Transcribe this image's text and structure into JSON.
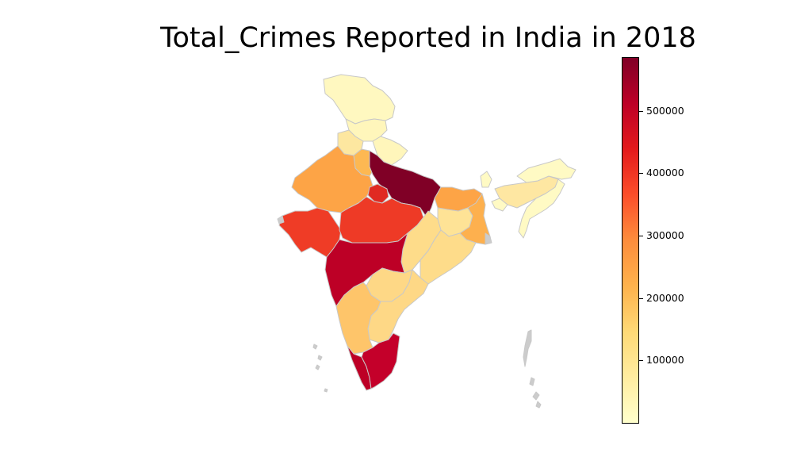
{
  "title": "Total_Crimes Reported in India in 2018",
  "colorbar": {
    "colormap": "YlOrRd",
    "min": 0,
    "max": 585000,
    "stops": [
      "#ffffcc",
      "#ffeda0",
      "#fed976",
      "#feb24c",
      "#fd8d3c",
      "#fc4e2a",
      "#e31a1c",
      "#bd0026",
      "#800026"
    ],
    "ticks": [
      {
        "value": 100000,
        "label": "100000"
      },
      {
        "value": 200000,
        "label": "200000"
      },
      {
        "value": 300000,
        "label": "300000"
      },
      {
        "value": 400000,
        "label": "400000"
      },
      {
        "value": 500000,
        "label": "500000"
      }
    ]
  },
  "map_data": {
    "regions": [
      {
        "name": "Jammu and Kashmir",
        "color": "#fff8c0"
      },
      {
        "name": "Himachal Pradesh",
        "color": "#fff6bb"
      },
      {
        "name": "Punjab",
        "color": "#fde7a0"
      },
      {
        "name": "Uttarakhand",
        "color": "#fff6bb"
      },
      {
        "name": "Haryana",
        "color": "#fdb852"
      },
      {
        "name": "Rajasthan",
        "color": "#fda446"
      },
      {
        "name": "Uttar Pradesh",
        "color": "#800026"
      },
      {
        "name": "Bihar",
        "color": "#fda446"
      },
      {
        "name": "Gujarat",
        "color": "#ef3c26"
      },
      {
        "name": "Madhya Pradesh",
        "color": "#ee3a26"
      },
      {
        "name": "Chhattisgarh",
        "color": "#fedc8a"
      },
      {
        "name": "Jharkhand",
        "color": "#fee396"
      },
      {
        "name": "West Bengal",
        "color": "#fdb04e"
      },
      {
        "name": "Odisha",
        "color": "#fedc8a"
      },
      {
        "name": "Maharashtra",
        "color": "#bd0026"
      },
      {
        "name": "Telangana",
        "color": "#fed886"
      },
      {
        "name": "Andhra Pradesh",
        "color": "#fed886"
      },
      {
        "name": "Karnataka",
        "color": "#fec56a"
      },
      {
        "name": "Kerala",
        "color": "#bd0026"
      },
      {
        "name": "Tamil Nadu",
        "color": "#c4002a"
      },
      {
        "name": "Assam",
        "color": "#fee7a2"
      },
      {
        "name": "Northeast States",
        "color": "#fffac4"
      },
      {
        "name": "Delhi",
        "color": "#e02a22"
      },
      {
        "name": "Islands",
        "color": "#cccccc"
      }
    ]
  }
}
